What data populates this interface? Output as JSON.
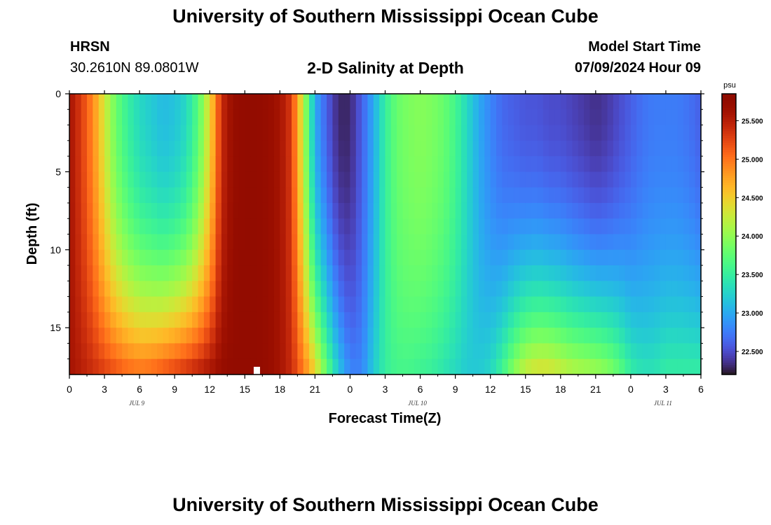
{
  "header": {
    "title": "University of Southern Mississippi Ocean Cube",
    "station": "HRSN",
    "coords": "30.2610N  89.0801W",
    "chart_title": "2-D Salinity at Depth",
    "model_start_label": "Model Start Time",
    "model_start_value": "07/09/2024 Hour 09"
  },
  "footer": {
    "title": "University of Southern Mississippi Ocean Cube"
  },
  "colors": {
    "marker": "#ffffff",
    "background": "#ffffff"
  },
  "chart_data": {
    "type": "heatmap",
    "xlabel": "Forecast Time(Z)",
    "ylabel": "Depth (ft)",
    "x_tick_labels": [
      "0",
      "3",
      "6",
      "9",
      "12",
      "15",
      "18",
      "21",
      "0",
      "3",
      "6",
      "9",
      "12",
      "15",
      "18",
      "21",
      "0",
      "3",
      "6"
    ],
    "date_labels": [
      "JUL 9",
      "JUL 10",
      "JUL 11"
    ],
    "x_range_hours": [
      0,
      54
    ],
    "y_tick_labels": [
      "0",
      "5",
      "10",
      "15"
    ],
    "y_range_ft": [
      0,
      18
    ],
    "y_inverted": true,
    "colorbar": {
      "unit": "psu",
      "range": [
        22.2,
        25.85
      ],
      "tick_labels": [
        "25.500",
        "25.000",
        "24.500",
        "24.000",
        "23.500",
        "23.000",
        "22.500"
      ],
      "tick_values": [
        25.5,
        25.0,
        24.5,
        24.0,
        23.5,
        23.0,
        22.5
      ],
      "colormap": "turbo"
    },
    "time_profile_surface": [
      [
        0,
        25.6
      ],
      [
        1,
        25.3
      ],
      [
        2,
        24.9
      ],
      [
        3,
        24.3
      ],
      [
        4,
        23.8
      ],
      [
        5,
        23.5
      ],
      [
        6,
        23.3
      ],
      [
        7,
        23.2
      ],
      [
        8,
        23.1
      ],
      [
        9,
        23.15
      ],
      [
        10,
        23.3
      ],
      [
        11,
        23.7
      ],
      [
        12,
        24.4
      ],
      [
        13,
        25.4
      ],
      [
        14,
        25.7
      ],
      [
        15,
        25.75
      ],
      [
        16,
        25.75
      ],
      [
        17,
        25.7
      ],
      [
        18,
        25.6
      ],
      [
        19,
        25.3
      ],
      [
        20,
        24.2
      ],
      [
        21,
        23.0
      ],
      [
        22,
        22.6
      ],
      [
        23,
        22.3
      ],
      [
        24,
        22.3
      ],
      [
        25,
        22.6
      ],
      [
        26,
        23.0
      ],
      [
        27,
        23.5
      ],
      [
        28,
        23.8
      ],
      [
        29,
        23.9
      ],
      [
        30,
        23.95
      ],
      [
        31,
        23.9
      ],
      [
        32,
        23.8
      ],
      [
        33,
        23.6
      ],
      [
        34,
        23.3
      ],
      [
        35,
        23.0
      ],
      [
        36,
        22.8
      ],
      [
        37,
        22.65
      ],
      [
        38,
        22.6
      ],
      [
        39,
        22.55
      ],
      [
        40,
        22.55
      ],
      [
        41,
        22.5
      ],
      [
        42,
        22.5
      ],
      [
        43,
        22.45
      ],
      [
        44,
        22.4
      ],
      [
        45,
        22.35
      ],
      [
        46,
        22.4
      ],
      [
        47,
        22.5
      ],
      [
        48,
        22.6
      ],
      [
        49,
        22.7
      ],
      [
        50,
        22.75
      ],
      [
        51,
        22.75
      ],
      [
        52,
        22.75
      ],
      [
        53,
        22.7
      ],
      [
        54,
        22.6
      ]
    ],
    "time_profile_bottom": [
      [
        0,
        25.6
      ],
      [
        1,
        25.5
      ],
      [
        2,
        25.4
      ],
      [
        3,
        25.3
      ],
      [
        4,
        25.2
      ],
      [
        5,
        25.1
      ],
      [
        6,
        25.05
      ],
      [
        7,
        25.1
      ],
      [
        8,
        25.2
      ],
      [
        9,
        25.3
      ],
      [
        10,
        25.4
      ],
      [
        11,
        25.5
      ],
      [
        12,
        25.6
      ],
      [
        13,
        25.7
      ],
      [
        14,
        25.75
      ],
      [
        15,
        25.75
      ],
      [
        16,
        25.75
      ],
      [
        17,
        25.7
      ],
      [
        18,
        25.6
      ],
      [
        19,
        25.4
      ],
      [
        20,
        25.0
      ],
      [
        21,
        24.5
      ],
      [
        22,
        23.8
      ],
      [
        23,
        23.2
      ],
      [
        24,
        22.8
      ],
      [
        25,
        22.8
      ],
      [
        26,
        23.2
      ],
      [
        27,
        23.5
      ],
      [
        28,
        23.6
      ],
      [
        29,
        23.6
      ],
      [
        30,
        23.55
      ],
      [
        31,
        23.5
      ],
      [
        32,
        23.4
      ],
      [
        33,
        23.3
      ],
      [
        34,
        23.2
      ],
      [
        35,
        23.2
      ],
      [
        36,
        23.3
      ],
      [
        37,
        23.6
      ],
      [
        38,
        24.0
      ],
      [
        39,
        24.3
      ],
      [
        40,
        24.4
      ],
      [
        41,
        24.4
      ],
      [
        42,
        24.3
      ],
      [
        43,
        24.2
      ],
      [
        44,
        24.15
      ],
      [
        45,
        24.1
      ],
      [
        46,
        24.0
      ],
      [
        47,
        23.8
      ],
      [
        48,
        23.5
      ],
      [
        49,
        23.4
      ],
      [
        50,
        23.4
      ],
      [
        51,
        23.5
      ],
      [
        52,
        23.5
      ],
      [
        53,
        23.5
      ],
      [
        54,
        23.5
      ]
    ],
    "marker": {
      "x_hour": 16,
      "depth_ft": 18
    }
  }
}
